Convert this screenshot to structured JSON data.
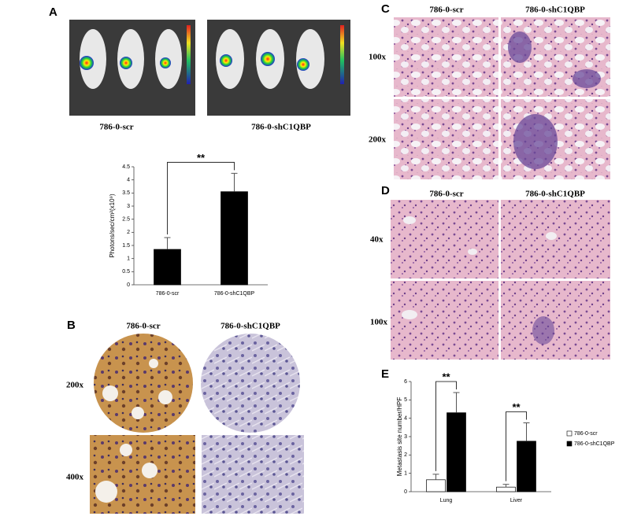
{
  "chart_data": [
    {
      "type": "bar",
      "y_label": "Photons/sec/cm²(x10⁹)",
      "categories": [
        "786-0-scr",
        "786-0-shC1QBP"
      ],
      "values": [
        1.35,
        3.55
      ],
      "errors": [
        0.45,
        0.7
      ],
      "color": "#000000",
      "ylim": [
        0,
        4.5
      ],
      "yticks": [
        0,
        0.5,
        1,
        1.5,
        2,
        2.5,
        3,
        3.5,
        4,
        4.5
      ],
      "annotations": [
        "**"
      ]
    },
    {
      "type": "bar",
      "y_label": "Metastasis site number/HPF",
      "categories": [
        "Lung",
        "Liver"
      ],
      "series": [
        {
          "name": "786-0-scr",
          "color": "#ffffff",
          "values": [
            0.65,
            0.25
          ],
          "errors": [
            0.3,
            0.15
          ]
        },
        {
          "name": "786-0-shC1QBP",
          "color": "#000000",
          "values": [
            4.3,
            2.75
          ],
          "errors": [
            1.1,
            1.0
          ]
        }
      ],
      "ylim": [
        0,
        6
      ],
      "yticks": [
        0,
        1,
        2,
        3,
        4,
        5,
        6
      ],
      "annotations": [
        "**",
        "**"
      ],
      "legend": "right"
    }
  ],
  "panels": {
    "A": {
      "label": "A",
      "captions": [
        "786-0-scr",
        "786-0-shC1QBP"
      ]
    },
    "B": {
      "label": "B",
      "columns": [
        "786-0-scr",
        "786-0-shC1QBP"
      ],
      "rows": [
        "200x",
        "400x"
      ]
    },
    "C": {
      "label": "C",
      "columns": [
        "786-0-scr",
        "786-0-shC1QBP"
      ],
      "rows": [
        "100x",
        "200x"
      ]
    },
    "D": {
      "label": "D",
      "columns": [
        "786-0-scr",
        "786-0-shC1QBP"
      ],
      "rows": [
        "40x",
        "100x"
      ]
    },
    "E": {
      "label": "E"
    }
  }
}
